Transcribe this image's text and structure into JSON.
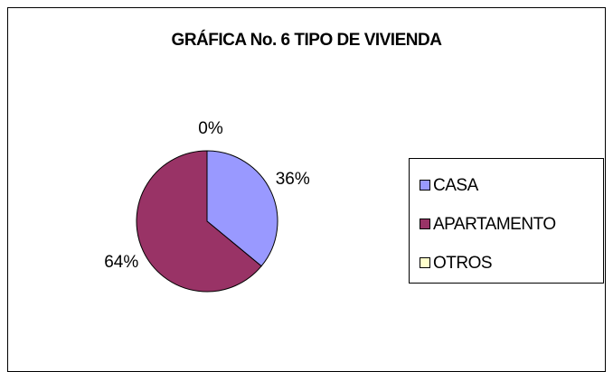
{
  "chart_data": {
    "type": "pie",
    "title": "GRÁFICA No. 6 TIPO DE VIVIENDA",
    "categories": [
      "CASA",
      "APARTAMENTO",
      "OTROS"
    ],
    "values": [
      36,
      64,
      0
    ],
    "value_labels": [
      "36%",
      "64%",
      "0%"
    ],
    "colors": [
      "#9999ff",
      "#993366",
      "#ffffcc"
    ],
    "legend": "right"
  }
}
